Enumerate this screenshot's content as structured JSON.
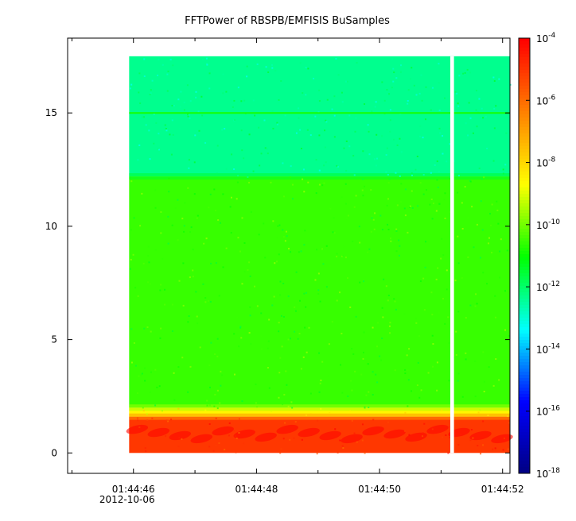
{
  "chart_data": {
    "type": "heatmap",
    "title": "FFTPower of RBSPB/EMFISIS  BuSamples",
    "xlabel": "",
    "ylabel": "",
    "x_axis": {
      "type": "time",
      "range": [
        "01:44:44.93",
        "01:44:52.12"
      ],
      "ticks": [
        {
          "value": "01:44:46",
          "label": "01:44:46"
        },
        {
          "value": "01:44:48",
          "label": "01:44:48"
        },
        {
          "value": "01:44:50",
          "label": "01:44:50"
        },
        {
          "value": "01:44:52",
          "label": "01:44:52"
        }
      ],
      "minor_ticks": [
        "01:44:45",
        "01:44:47",
        "01:44:49",
        "01:44:51"
      ],
      "date_label": "2012-10-06"
    },
    "y_axis": {
      "range": [
        -0.9,
        18.3
      ],
      "ticks": [
        0,
        5,
        10,
        15
      ]
    },
    "data_extent": {
      "x_start": "01:44:45.93",
      "x_end": "01:44:52.12",
      "y_min": 0,
      "y_max": 17.5
    },
    "gap": {
      "start": "01:44:51.15",
      "end": "01:44:51.21"
    },
    "bands": [
      {
        "y_min": 0,
        "y_max": 1.6,
        "level_log10": -5,
        "note": "intense low-frequency emission with structured bursts"
      },
      {
        "y_min": 1.6,
        "y_max": 2.0,
        "level_log10": -8.5
      },
      {
        "y_min": 2.0,
        "y_max": 12.2,
        "level_log10": -10.5
      },
      {
        "y_min": 12.2,
        "y_max": 17.5,
        "level_log10": -12.3
      }
    ],
    "features": [
      {
        "type": "horizontal_line",
        "y": 15.0,
        "level_log10": -10.8
      }
    ],
    "colorbar": {
      "scale": "log",
      "range": [
        1e-18,
        0.0001
      ],
      "colormap": [
        "#000080",
        "#0000ff",
        "#00ffff",
        "#00ff00",
        "#ffff00",
        "#ff8000",
        "#ff0000"
      ],
      "ticks": [
        {
          "value": "1e-4",
          "base": "10",
          "exp": "-4"
        },
        {
          "value": "1e-6",
          "base": "10",
          "exp": "-6"
        },
        {
          "value": "1e-8",
          "base": "10",
          "exp": "-8"
        },
        {
          "value": "1e-10",
          "base": "10",
          "exp": "-10"
        },
        {
          "value": "1e-12",
          "base": "10",
          "exp": "-12"
        },
        {
          "value": "1e-14",
          "base": "10",
          "exp": "-14"
        },
        {
          "value": "1e-16",
          "base": "10",
          "exp": "-16"
        },
        {
          "value": "1e-18",
          "base": "10",
          "exp": "-18"
        }
      ]
    }
  }
}
